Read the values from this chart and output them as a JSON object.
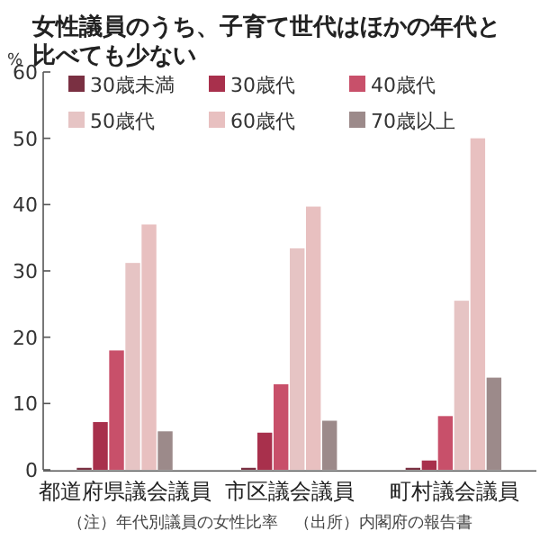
{
  "chart_data": {
    "type": "bar",
    "title": "女性議員のうち、子育て世代はほかの年代と比べても少ない",
    "ylabel": "%",
    "categories": [
      "都道府県議会議員",
      "市区議会議員",
      "町村議会議員"
    ],
    "series": [
      {
        "name": "30歳未満",
        "color": "#7a3042",
        "values": [
          0.3,
          0.3,
          0.3
        ]
      },
      {
        "name": "30歳代",
        "color": "#a8304c",
        "values": [
          7.2,
          5.6,
          1.4
        ]
      },
      {
        "name": "40歳代",
        "color": "#c8506a",
        "values": [
          18,
          12.9,
          8.1
        ]
      },
      {
        "name": "50歳代",
        "color": "#e6c4c4",
        "values": [
          31.2,
          33.4,
          25.5
        ]
      },
      {
        "name": "60歳代",
        "color": "#e8c0c0",
        "values": [
          37,
          39.7,
          50
        ]
      },
      {
        "name": "70歳以上",
        "color": "#9c8a8a",
        "values": [
          5.8,
          7.4,
          13.9
        ]
      }
    ],
    "ylim": [
      0,
      60
    ],
    "yticks": [
      0,
      10,
      20,
      30,
      40,
      50,
      60
    ],
    "grid": false,
    "legend": "top",
    "annotations": [
      "（注）年代別議員の女性比率",
      "（出所）内閣府の報告書"
    ]
  }
}
